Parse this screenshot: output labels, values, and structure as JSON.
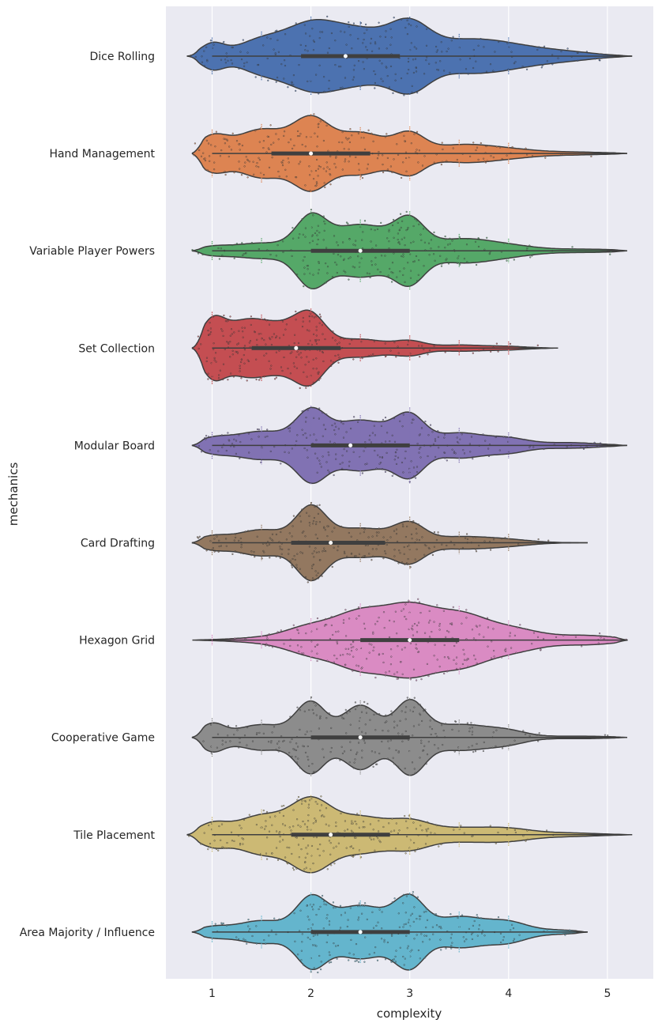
{
  "chart_data": {
    "type": "violin",
    "xlabel": "complexity",
    "ylabel": "mechanics",
    "xlim": [
      0.6,
      5.4
    ],
    "x_ticks": [
      1,
      2,
      3,
      4,
      5
    ],
    "grid": true,
    "colors": [
      "#4c72b0",
      "#dd8452",
      "#55a868",
      "#c44e52",
      "#8172b3",
      "#937860",
      "#da8bc3",
      "#8c8c8c",
      "#ccb974",
      "#64b5cd"
    ],
    "categories": [
      "Dice Rolling",
      "Hand Management",
      "Variable Player Powers",
      "Set Collection",
      "Modular Board",
      "Card Drafting",
      "Hexagon Grid",
      "Cooperative Game",
      "Tile Placement",
      "Area Majority / Influence"
    ],
    "series": [
      {
        "name": "Dice Rolling",
        "range": [
          0.75,
          5.25
        ],
        "median": 2.35,
        "quartiles": [
          1.9,
          2.9
        ],
        "whisker": [
          1.0,
          5.25
        ],
        "peaks": [
          [
            1.0,
            0.4,
            0.12
          ],
          [
            1.5,
            0.55,
            0.25
          ],
          [
            2.0,
            0.95,
            0.25
          ],
          [
            2.5,
            0.85,
            0.3
          ],
          [
            3.0,
            0.92,
            0.2
          ],
          [
            3.5,
            0.45,
            0.35
          ],
          [
            4.0,
            0.3,
            0.35
          ],
          [
            4.6,
            0.12,
            0.3
          ]
        ]
      },
      {
        "name": "Hand Management",
        "range": [
          0.8,
          5.2
        ],
        "median": 2.0,
        "quartiles": [
          1.6,
          2.6
        ],
        "whisker": [
          1.0,
          5.2
        ],
        "peaks": [
          [
            1.0,
            0.5,
            0.15
          ],
          [
            1.5,
            0.75,
            0.25
          ],
          [
            2.0,
            1.0,
            0.18
          ],
          [
            2.5,
            0.65,
            0.25
          ],
          [
            3.0,
            0.55,
            0.15
          ],
          [
            3.5,
            0.25,
            0.3
          ],
          [
            4.0,
            0.12,
            0.3
          ],
          [
            4.7,
            0.04,
            0.3
          ]
        ]
      },
      {
        "name": "Variable Player Powers",
        "range": [
          0.8,
          5.2
        ],
        "median": 2.5,
        "quartiles": [
          2.0,
          3.0
        ],
        "whisker": [
          1.0,
          5.2
        ],
        "peaks": [
          [
            1.0,
            0.1,
            0.15
          ],
          [
            1.5,
            0.25,
            0.3
          ],
          [
            2.0,
            0.95,
            0.15
          ],
          [
            2.5,
            0.85,
            0.3
          ],
          [
            3.0,
            0.85,
            0.15
          ],
          [
            3.5,
            0.35,
            0.3
          ],
          [
            4.0,
            0.15,
            0.3
          ],
          [
            4.8,
            0.05,
            0.3
          ]
        ]
      },
      {
        "name": "Set Collection",
        "range": [
          0.8,
          4.5
        ],
        "median": 1.85,
        "quartiles": [
          1.4,
          2.3
        ],
        "whisker": [
          1.0,
          4.5
        ],
        "peaks": [
          [
            1.0,
            0.95,
            0.12
          ],
          [
            1.3,
            0.85,
            0.2
          ],
          [
            1.7,
            0.85,
            0.25
          ],
          [
            2.0,
            1.0,
            0.15
          ],
          [
            2.5,
            0.35,
            0.25
          ],
          [
            3.0,
            0.25,
            0.15
          ],
          [
            3.5,
            0.12,
            0.25
          ],
          [
            4.0,
            0.06,
            0.2
          ]
        ]
      },
      {
        "name": "Modular Board",
        "range": [
          0.8,
          5.2
        ],
        "median": 2.4,
        "quartiles": [
          2.0,
          3.0
        ],
        "whisker": [
          1.0,
          5.2
        ],
        "peaks": [
          [
            1.0,
            0.15,
            0.15
          ],
          [
            1.5,
            0.4,
            0.3
          ],
          [
            2.0,
            0.8,
            0.15
          ],
          [
            2.5,
            0.72,
            0.3
          ],
          [
            3.0,
            0.72,
            0.15
          ],
          [
            3.5,
            0.35,
            0.25
          ],
          [
            4.0,
            0.18,
            0.2
          ],
          [
            4.6,
            0.08,
            0.3
          ]
        ]
      },
      {
        "name": "Card Drafting",
        "range": [
          0.8,
          4.8
        ],
        "median": 2.2,
        "quartiles": [
          1.8,
          2.75
        ],
        "whisker": [
          1.0,
          4.8
        ],
        "peaks": [
          [
            1.0,
            0.18,
            0.15
          ],
          [
            1.5,
            0.4,
            0.25
          ],
          [
            2.0,
            1.0,
            0.15
          ],
          [
            2.5,
            0.45,
            0.3
          ],
          [
            3.0,
            0.5,
            0.15
          ],
          [
            3.5,
            0.18,
            0.3
          ],
          [
            4.0,
            0.08,
            0.25
          ]
        ]
      },
      {
        "name": "Hexagon Grid",
        "range": [
          0.8,
          5.2
        ],
        "median": 3.0,
        "quartiles": [
          2.5,
          3.5
        ],
        "whisker": [
          1.0,
          5.2
        ],
        "peaks": [
          [
            1.5,
            0.06,
            0.3
          ],
          [
            2.0,
            0.35,
            0.25
          ],
          [
            2.5,
            0.7,
            0.25
          ],
          [
            3.0,
            0.85,
            0.25
          ],
          [
            3.5,
            0.6,
            0.25
          ],
          [
            4.0,
            0.32,
            0.3
          ],
          [
            4.8,
            0.12,
            0.3
          ]
        ]
      },
      {
        "name": "Cooperative Game",
        "range": [
          0.8,
          5.2
        ],
        "median": 2.5,
        "quartiles": [
          2.0,
          3.0
        ],
        "whisker": [
          1.0,
          5.2
        ],
        "peaks": [
          [
            1.0,
            0.3,
            0.12
          ],
          [
            1.5,
            0.3,
            0.25
          ],
          [
            2.0,
            0.8,
            0.15
          ],
          [
            2.5,
            0.75,
            0.18
          ],
          [
            3.0,
            0.8,
            0.15
          ],
          [
            3.5,
            0.3,
            0.3
          ],
          [
            4.0,
            0.12,
            0.2
          ],
          [
            4.7,
            0.03,
            0.3
          ]
        ]
      },
      {
        "name": "Tile Placement",
        "range": [
          0.75,
          5.25
        ],
        "median": 2.2,
        "quartiles": [
          1.8,
          2.8
        ],
        "whisker": [
          1.0,
          5.25
        ],
        "peaks": [
          [
            1.0,
            0.3,
            0.15
          ],
          [
            1.5,
            0.55,
            0.25
          ],
          [
            2.0,
            0.95,
            0.2
          ],
          [
            2.5,
            0.5,
            0.25
          ],
          [
            3.0,
            0.35,
            0.2
          ],
          [
            3.5,
            0.18,
            0.3
          ],
          [
            4.0,
            0.15,
            0.25
          ],
          [
            4.6,
            0.05,
            0.3
          ]
        ]
      },
      {
        "name": "Area Majority / Influence",
        "range": [
          0.8,
          4.8
        ],
        "median": 2.5,
        "quartiles": [
          2.0,
          3.0
        ],
        "whisker": [
          1.0,
          4.8
        ],
        "peaks": [
          [
            1.0,
            0.12,
            0.15
          ],
          [
            1.5,
            0.3,
            0.25
          ],
          [
            2.0,
            0.8,
            0.15
          ],
          [
            2.5,
            0.7,
            0.28
          ],
          [
            3.0,
            0.8,
            0.15
          ],
          [
            3.5,
            0.4,
            0.25
          ],
          [
            4.0,
            0.25,
            0.2
          ],
          [
            4.5,
            0.05,
            0.2
          ]
        ]
      }
    ]
  }
}
